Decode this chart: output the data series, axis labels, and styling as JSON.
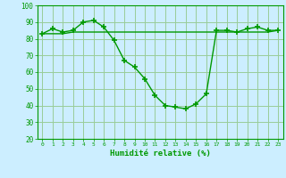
{
  "title": "",
  "xlabel": "Humidité relative (%)",
  "ylabel": "",
  "background_color": "#cceeff",
  "grid_color": "#99cc99",
  "line_color": "#009900",
  "marker_color": "#009900",
  "xlim": [
    -0.5,
    23.5
  ],
  "ylim": [
    20,
    100
  ],
  "yticks": [
    20,
    30,
    40,
    50,
    60,
    70,
    80,
    90,
    100
  ],
  "xticks": [
    0,
    1,
    2,
    3,
    4,
    5,
    6,
    7,
    8,
    9,
    10,
    11,
    12,
    13,
    14,
    15,
    16,
    17,
    18,
    19,
    20,
    21,
    22,
    23
  ],
  "xtick_labels": [
    "0",
    "1",
    "2",
    "3",
    "4",
    "5",
    "6",
    "7",
    "8",
    "9",
    "10",
    "11",
    "12",
    "13",
    "14",
    "15",
    "16",
    "17",
    "18",
    "19",
    "20",
    "21",
    "22",
    "23"
  ],
  "series1_x": [
    0,
    1,
    2,
    3,
    4,
    5,
    6,
    7,
    8,
    9,
    10,
    11,
    12,
    13,
    14,
    15,
    16,
    17,
    18,
    19,
    20,
    21,
    22,
    23
  ],
  "series1_y": [
    83,
    86,
    84,
    85,
    90,
    91,
    87,
    79,
    67,
    63,
    56,
    46,
    40,
    39,
    38,
    41,
    47,
    85,
    85,
    84,
    86,
    87,
    85,
    85
  ],
  "series2_x": [
    0,
    1,
    2,
    3,
    4,
    5,
    6,
    7,
    8,
    9,
    10,
    11,
    12,
    13,
    14,
    15,
    16,
    17,
    18,
    19,
    20,
    21,
    22,
    23
  ],
  "series2_y": [
    83,
    83,
    83,
    84,
    84,
    84,
    84,
    84,
    84,
    84,
    84,
    84,
    84,
    84,
    84,
    84,
    84,
    84,
    84,
    84,
    84,
    84,
    84,
    85
  ]
}
